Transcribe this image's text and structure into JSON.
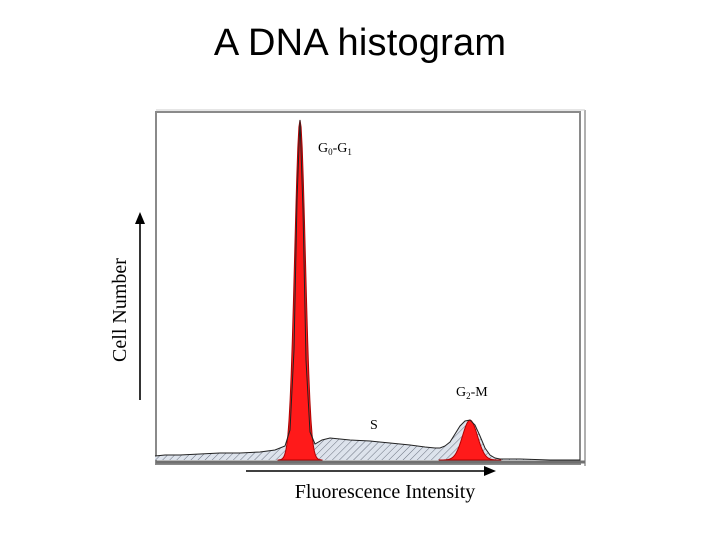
{
  "slide": {
    "title": "A DNA histogram"
  },
  "chart_data": {
    "type": "area",
    "title": "",
    "xlabel": "Fluorescence Intensity",
    "ylabel": "Cell Number",
    "grid": false,
    "legend": "none",
    "colors": {
      "peak_fill": "#ff1a1a",
      "s_phase_fill": "#bfc8d6",
      "hatch": "#555555",
      "frame": "#888888",
      "text": "#000000"
    },
    "annotations": [
      {
        "id": "g0g1",
        "base": "G",
        "sub1": "0",
        "mid": "-G",
        "sub2": "1"
      },
      {
        "id": "g2m",
        "base": "G",
        "sub1": "2",
        "mid": "-M",
        "sub2": ""
      },
      {
        "id": "s",
        "base": "S",
        "sub1": "",
        "mid": "",
        "sub2": ""
      }
    ],
    "peaks": [
      {
        "name": "G0-G1",
        "x": 300,
        "height": 340
      },
      {
        "name": "G2-M",
        "x": 470,
        "height": 40
      }
    ],
    "histogram": {
      "x": [
        155,
        165,
        180,
        200,
        220,
        240,
        260,
        275,
        285,
        290,
        294,
        297,
        300,
        303,
        306,
        310,
        315,
        322,
        330,
        350,
        370,
        390,
        410,
        425,
        435,
        440,
        445,
        450,
        455,
        460,
        465,
        470,
        475,
        480,
        485,
        490,
        495,
        500,
        520,
        550,
        580
      ],
      "y": [
        4,
        5,
        5,
        6,
        7,
        7,
        8,
        10,
        14,
        30,
        110,
        260,
        340,
        250,
        100,
        28,
        16,
        20,
        22,
        20,
        19,
        17,
        15,
        13,
        12,
        12,
        14,
        18,
        26,
        34,
        39,
        40,
        35,
        24,
        12,
        5,
        2,
        1,
        1,
        0,
        0
      ]
    }
  }
}
